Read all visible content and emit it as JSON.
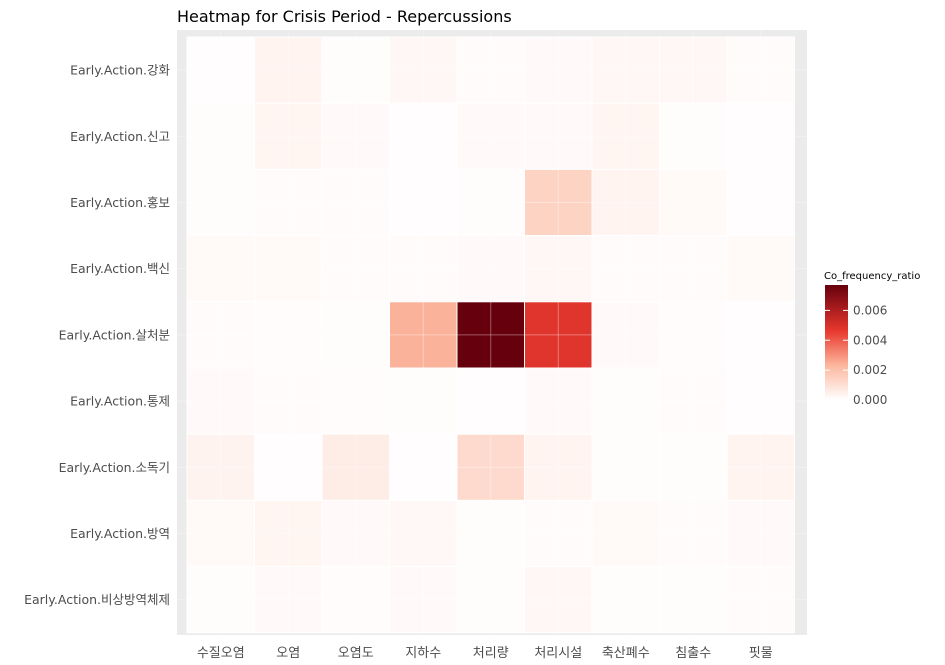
{
  "chart_data": {
    "type": "heatmap",
    "title": "Heatmap for Crisis Period - Repercussions",
    "xlabel": "",
    "ylabel": "",
    "x_categories": [
      "수질오염",
      "오염",
      "오염도",
      "지하수",
      "처리량",
      "처리시설",
      "축산폐수",
      "침출수",
      "핏물"
    ],
    "y_categories": [
      "Early.Action.강화",
      "Early.Action.신고",
      "Early.Action.홍보",
      "Early.Action.백신",
      "Early.Action.살처분",
      "Early.Action.통제",
      "Early.Action.소독기",
      "Early.Action.방역",
      "Early.Action.비상방역체제"
    ],
    "values": [
      [
        5e-05,
        0.00035,
        8e-05,
        0.00025,
        0.00012,
        0.00015,
        0.00025,
        0.00025,
        0.00012
      ],
      [
        7e-05,
        0.0003,
        0.00015,
        5e-05,
        0.00015,
        0.00015,
        0.0003,
        8e-05,
        5e-05
      ],
      [
        8e-05,
        0.00012,
        0.00012,
        5e-05,
        8e-05,
        0.0014,
        0.00035,
        0.00018,
        5e-05
      ],
      [
        0.0002,
        0.0002,
        0.00012,
        0.00012,
        0.00015,
        0.00025,
        0.00012,
        0.00012,
        0.0002
      ],
      [
        0.00012,
        0.0001,
        8e-05,
        0.0024,
        0.0077,
        0.0048,
        0.00015,
        0.0001,
        5e-05
      ],
      [
        0.00015,
        0.00012,
        0.0001,
        8e-05,
        5e-05,
        0.00015,
        8e-05,
        0.00012,
        5e-05
      ],
      [
        0.0004,
        5e-05,
        0.0006,
        5e-05,
        0.0012,
        0.00035,
        8e-05,
        8e-05,
        0.00035
      ],
      [
        0.0002,
        0.0003,
        0.00015,
        0.00022,
        8e-05,
        0.00012,
        0.0002,
        0.00012,
        0.00015
      ],
      [
        8e-05,
        0.00015,
        0.0001,
        0.00015,
        8e-05,
        0.00025,
        8e-05,
        8e-05,
        0.00012
      ]
    ],
    "legend": {
      "title": "Co_frequency_ratio",
      "ticks": [
        "0.000",
        "0.002",
        "0.004",
        "0.006"
      ],
      "tick_values": [
        0,
        0.002,
        0.004,
        0.006
      ],
      "range": [
        0,
        0.0077
      ],
      "position": "right"
    },
    "colors": {
      "low": "#ffffff",
      "mid": "#e8382e",
      "high": "#67000d",
      "panel": "#ebebeb",
      "grid": "#ffffff"
    },
    "grid": true
  }
}
